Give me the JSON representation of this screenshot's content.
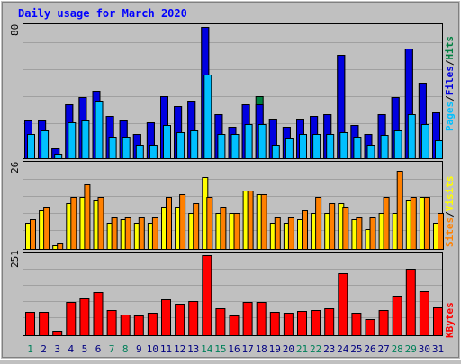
{
  "chart_data": [
    {
      "type": "bar",
      "title": "Daily usage for March 2020",
      "ylabel": "Pages / Files / Hits",
      "ymax_label": "80",
      "ylim": [
        0,
        80
      ],
      "categories": [
        "1",
        "2",
        "3",
        "4",
        "5",
        "6",
        "7",
        "8",
        "9",
        "10",
        "11",
        "12",
        "13",
        "14",
        "15",
        "16",
        "17",
        "18",
        "19",
        "20",
        "21",
        "22",
        "23",
        "24",
        "25",
        "26",
        "27",
        "28",
        "29",
        "30",
        "31"
      ],
      "weekend_days": [
        "1",
        "7",
        "8",
        "14",
        "15",
        "21",
        "22",
        "28",
        "29"
      ],
      "series": [
        {
          "name": "Hits",
          "color": "#008040",
          "values": [
            23,
            23,
            6,
            33,
            37,
            41,
            26,
            23,
            15,
            22,
            38,
            32,
            35,
            80,
            27,
            19,
            33,
            38,
            24,
            19,
            24,
            26,
            27,
            63,
            20,
            15,
            27,
            37,
            67,
            46,
            28
          ]
        },
        {
          "name": "Files",
          "color": "#0000e0",
          "values": [
            23,
            23,
            6,
            33,
            37,
            41,
            26,
            23,
            15,
            22,
            38,
            32,
            35,
            80,
            27,
            19,
            33,
            33,
            24,
            19,
            24,
            26,
            27,
            63,
            20,
            15,
            27,
            37,
            67,
            46,
            28
          ]
        },
        {
          "name": "Pages",
          "color": "#00c0ff",
          "values": [
            15,
            17,
            3,
            22,
            23,
            35,
            13,
            13,
            8,
            8,
            20,
            16,
            17,
            51,
            15,
            15,
            21,
            21,
            8,
            12,
            15,
            15,
            15,
            16,
            13,
            8,
            14,
            17,
            27,
            21,
            11
          ]
        }
      ]
    },
    {
      "type": "bar",
      "ylabel": "Sites / Visits",
      "ymax_label": "26",
      "ylim": [
        0,
        26
      ],
      "categories": [
        "1",
        "2",
        "3",
        "4",
        "5",
        "6",
        "7",
        "8",
        "9",
        "10",
        "11",
        "12",
        "13",
        "14",
        "15",
        "16",
        "17",
        "18",
        "19",
        "20",
        "21",
        "22",
        "23",
        "24",
        "25",
        "26",
        "27",
        "28",
        "29",
        "30",
        "31"
      ],
      "series": [
        {
          "name": "Visits",
          "color": "#ffff00",
          "values": [
            8,
            12,
            1,
            14,
            16,
            15,
            8,
            9,
            8,
            8,
            13,
            13,
            11,
            22,
            11,
            11,
            18,
            17,
            8,
            8,
            9,
            11,
            11,
            14,
            9,
            6,
            11,
            11,
            15,
            16,
            8
          ]
        },
        {
          "name": "Sites",
          "color": "#ff8000",
          "values": [
            9,
            13,
            2,
            16,
            20,
            16,
            10,
            10,
            10,
            10,
            16,
            17,
            14,
            16,
            13,
            11,
            18,
            17,
            10,
            10,
            12,
            16,
            14,
            13,
            10,
            10,
            16,
            24,
            16,
            16,
            11
          ]
        }
      ]
    },
    {
      "type": "bar",
      "ylabel": "KBytes",
      "ymax_label": "251",
      "ylim": [
        0,
        251
      ],
      "categories": [
        "1",
        "2",
        "3",
        "4",
        "5",
        "6",
        "7",
        "8",
        "9",
        "10",
        "11",
        "12",
        "13",
        "14",
        "15",
        "16",
        "17",
        "18",
        "19",
        "20",
        "21",
        "22",
        "23",
        "24",
        "25",
        "26",
        "27",
        "28",
        "29",
        "30",
        "31"
      ],
      "series": [
        {
          "name": "KBytes",
          "color": "#ff0000",
          "values": [
            73,
            73,
            15,
            103,
            117,
            135,
            78,
            64,
            61,
            70,
            113,
            99,
            108,
            251,
            86,
            63,
            103,
            103,
            74,
            71,
            77,
            78,
            84,
            195,
            70,
            52,
            78,
            124,
            208,
            138,
            87
          ]
        }
      ]
    }
  ]
}
